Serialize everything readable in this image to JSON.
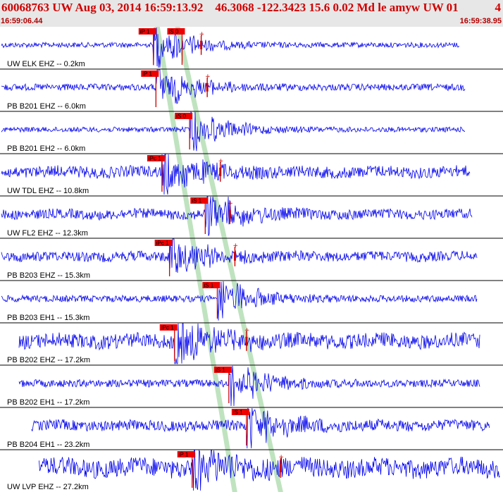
{
  "header": {
    "title": "60068763 UW Aug 03, 2014 16:59:13.92    46.3068 -122.3423 15.6 0.02 Md le amyw UW 01",
    "trailing": "4",
    "start_time": "16:59:06.44",
    "end_time": "16:59:38.95"
  },
  "colors": {
    "trace": "#0000ee",
    "pick_bg": "#ee0000",
    "pick_line": "#cc0000",
    "window": "#b8e0b8",
    "separator": "#000000",
    "header_bg": "#e7e7e7",
    "title": "#d00000"
  },
  "chart_data": {
    "type": "line",
    "x_unit": "time",
    "xlim": [
      "16:59:06.44",
      "16:59:38.95"
    ],
    "traces": [
      {
        "label": "UW ELK EHZ -- 0.2km",
        "noise": 0.15,
        "start_x": 0.0,
        "end_x": 0.92,
        "picks": [
          {
            "label": "iP 1",
            "x": 0.305,
            "bar": true
          },
          {
            "label": "iS 0",
            "x": 0.362,
            "bar": true
          },
          {
            "label": "",
            "x": 0.4,
            "bar": false
          }
        ]
      },
      {
        "label": "PB B201 EHZ -- 6.0km",
        "noise": 0.25,
        "start_x": 0.0,
        "end_x": 0.93,
        "picks": [
          {
            "label": "iP 1",
            "x": 0.31,
            "bar": true
          },
          {
            "label": "",
            "x": 0.412,
            "bar": false
          }
        ]
      },
      {
        "label": "PB B201 EH2 -- 6.0km",
        "noise": 0.15,
        "start_x": 0.0,
        "end_x": 0.93,
        "picks": [
          {
            "label": "iS 0",
            "x": 0.377,
            "bar": true
          }
        ]
      },
      {
        "label": "UW TDL EHZ -- 10.8km",
        "noise": 0.55,
        "start_x": 0.0,
        "end_x": 0.94,
        "picks": [
          {
            "label": "iPc 1",
            "x": 0.322,
            "bar": true
          },
          {
            "label": "",
            "x": 0.438,
            "bar": false
          }
        ]
      },
      {
        "label": "UW FL2 EHZ -- 12.3km",
        "noise": 0.45,
        "start_x": 0.0,
        "end_x": 0.945,
        "picks": [
          {
            "label": "iS 1",
            "x": 0.408,
            "bar": true
          },
          {
            "label": "",
            "x": 0.457,
            "bar": false
          }
        ]
      },
      {
        "label": "PB B203 EHZ -- 15.3km",
        "noise": 0.45,
        "start_x": 0.0,
        "end_x": 0.955,
        "picks": [
          {
            "label": "iPc 1",
            "x": 0.337,
            "bar": true
          },
          {
            "label": "",
            "x": 0.467,
            "bar": false
          }
        ]
      },
      {
        "label": "PB B203 EH1 -- 15.3km",
        "noise": 0.25,
        "start_x": 0.0,
        "end_x": 0.955,
        "picks": [
          {
            "label": "iS 1",
            "x": 0.432,
            "bar": true
          }
        ]
      },
      {
        "label": "PB B202 EHZ -- 17.2km",
        "noise": 0.75,
        "start_x": 0.035,
        "end_x": 0.96,
        "picks": [
          {
            "label": "iPc 1",
            "x": 0.347,
            "bar": true
          },
          {
            "label": "",
            "x": 0.49,
            "bar": false
          }
        ]
      },
      {
        "label": "PB B202 EH1 -- 17.2km",
        "noise": 0.3,
        "start_x": 0.035,
        "end_x": 0.96,
        "picks": [
          {
            "label": "iS 1",
            "x": 0.455,
            "bar": true
          }
        ]
      },
      {
        "label": "PB B204 EH1 -- 23.2km",
        "noise": 0.5,
        "start_x": 0.06,
        "end_x": 0.98,
        "picks": [
          {
            "label": "iS 1",
            "x": 0.49,
            "bar": true
          }
        ]
      },
      {
        "label": "UW LVP EHZ -- 27.2km",
        "noise": 1.0,
        "start_x": 0.075,
        "end_x": 1.0,
        "picks": [
          {
            "label": "iP 1",
            "x": 0.382,
            "bar": true
          },
          {
            "label": "",
            "x": 0.558,
            "bar": false
          }
        ]
      }
    ]
  }
}
